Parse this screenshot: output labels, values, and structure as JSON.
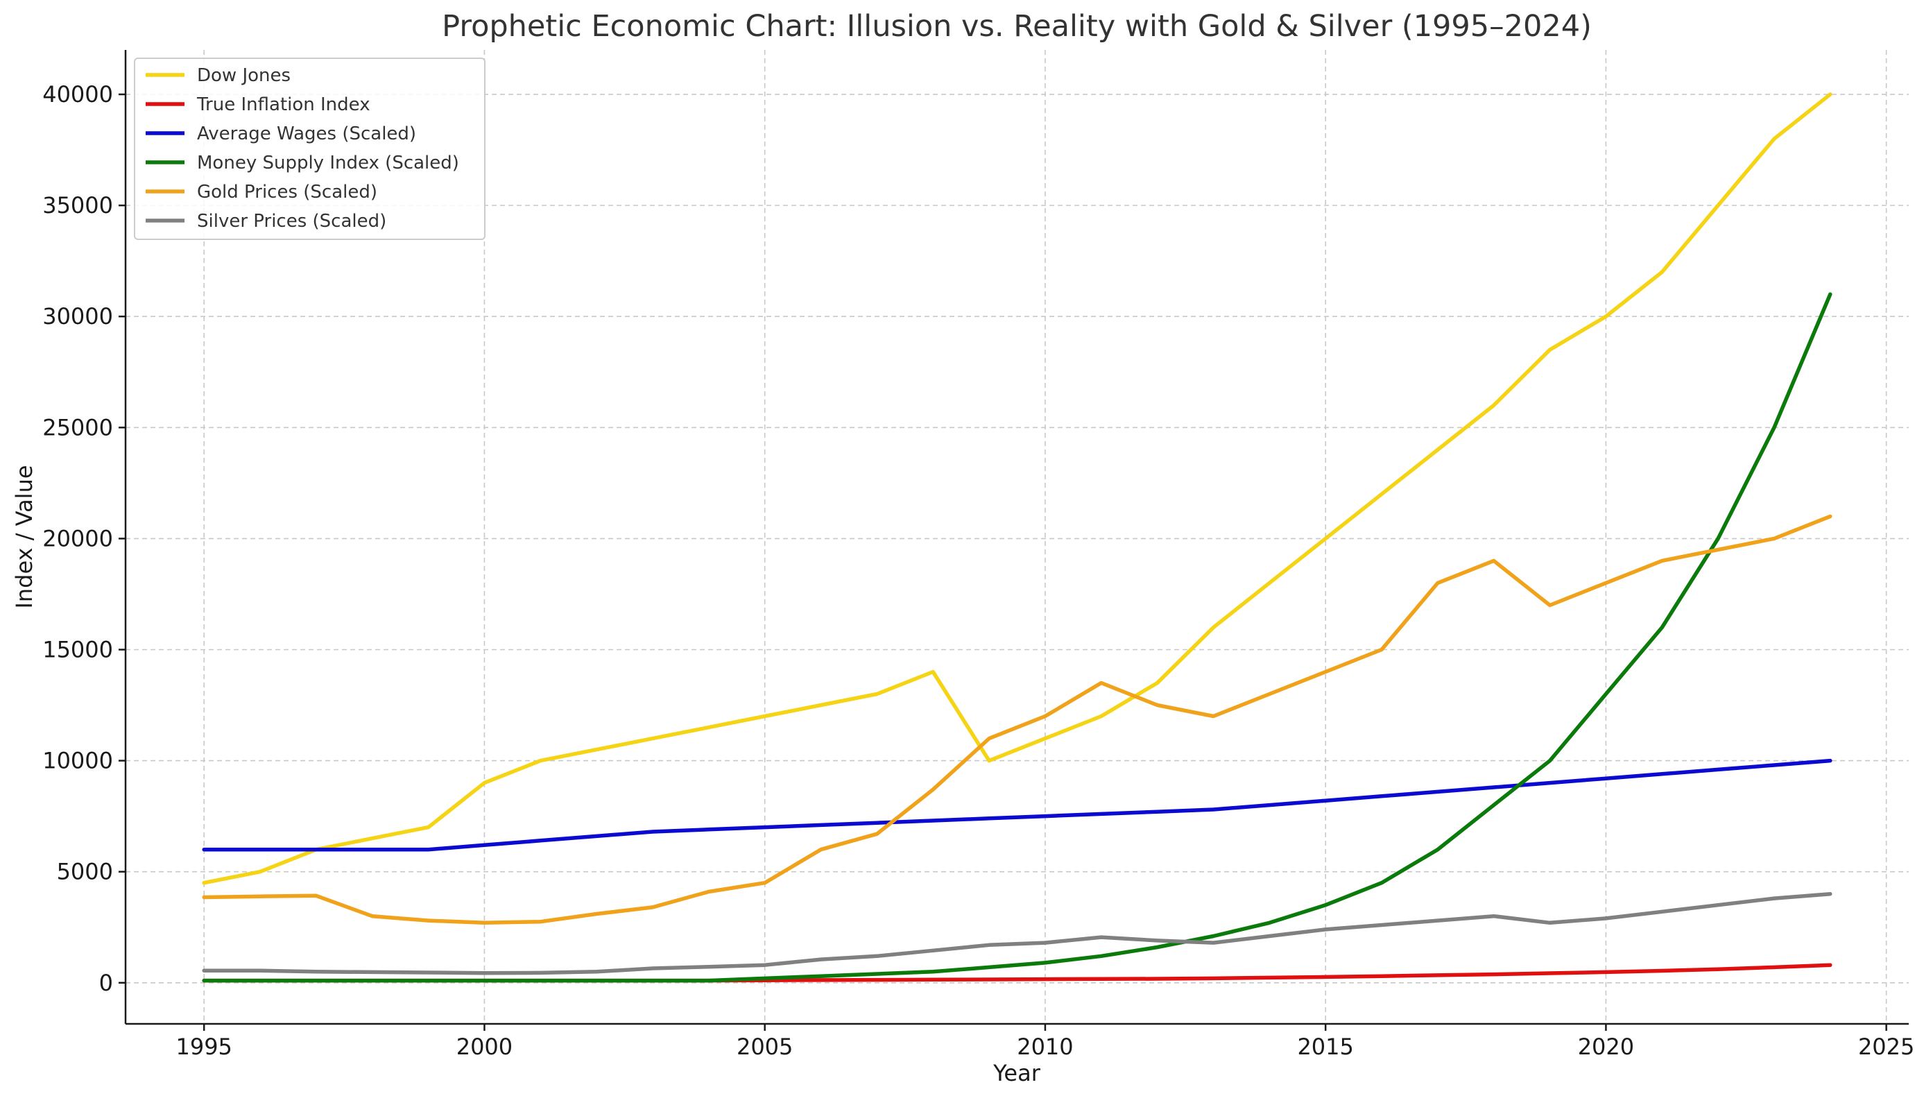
{
  "chart_data": {
    "type": "line",
    "title": "Prophetic Economic Chart: Illusion vs. Reality with Gold & Silver (1995–2024)",
    "xlabel": "Year",
    "ylabel": "Index / Value",
    "xlim": [
      1993.6,
      2025.4
    ],
    "ylim": [
      -1850,
      42000
    ],
    "x_ticks": [
      1995,
      2000,
      2005,
      2010,
      2015,
      2020,
      2025
    ],
    "y_ticks": [
      0,
      5000,
      10000,
      15000,
      20000,
      25000,
      30000,
      35000,
      40000
    ],
    "grid": true,
    "legend_position": "upper-left",
    "x": [
      1995,
      1996,
      1997,
      1998,
      1999,
      2000,
      2001,
      2002,
      2003,
      2004,
      2005,
      2006,
      2007,
      2008,
      2009,
      2010,
      2011,
      2012,
      2013,
      2014,
      2015,
      2016,
      2017,
      2018,
      2019,
      2020,
      2021,
      2022,
      2023,
      2024
    ],
    "series": [
      {
        "name": "Dow Jones",
        "color": "#f5d315",
        "values": [
          4500,
          5000,
          6000,
          6500,
          7000,
          9000,
          10000,
          10500,
          11000,
          11500,
          12000,
          12500,
          13000,
          14000,
          10000,
          11000,
          12000,
          13500,
          16000,
          18000,
          20000,
          22000,
          24000,
          26000,
          28500,
          30000,
          32000,
          35000,
          38000,
          40000
        ]
      },
      {
        "name": "True Inflation Index",
        "color": "#e01010",
        "values": [
          100,
          100,
          100,
          100,
          100,
          100,
          100,
          100,
          100,
          100,
          110,
          120,
          130,
          140,
          150,
          160,
          170,
          180,
          200,
          230,
          260,
          300,
          340,
          380,
          430,
          480,
          540,
          610,
          700,
          800
        ]
      },
      {
        "name": "Average Wages (Scaled)",
        "color": "#0a0ad0",
        "values": [
          6000,
          6000,
          6000,
          6000,
          6000,
          6200,
          6400,
          6600,
          6800,
          6900,
          7000,
          7100,
          7200,
          7300,
          7400,
          7500,
          7600,
          7700,
          7800,
          8000,
          8200,
          8400,
          8600,
          8800,
          9000,
          9200,
          9400,
          9600,
          9800,
          10000
        ]
      },
      {
        "name": "Money Supply Index (Scaled)",
        "color": "#0a7a0a",
        "values": [
          100,
          100,
          100,
          100,
          100,
          100,
          100,
          100,
          100,
          100,
          200,
          300,
          400,
          500,
          700,
          900,
          1200,
          1600,
          2100,
          2700,
          3500,
          4500,
          6000,
          8000,
          10000,
          13000,
          16000,
          20000,
          25000,
          31000
        ]
      },
      {
        "name": "Gold Prices (Scaled)",
        "color": "#f0a21b",
        "values": [
          3850,
          3890,
          3920,
          3000,
          2800,
          2700,
          2750,
          3100,
          3400,
          4100,
          4500,
          6000,
          6700,
          8700,
          11000,
          12000,
          13500,
          12500,
          12000,
          13000,
          14000,
          15000,
          18000,
          19000,
          17000,
          18000,
          19000,
          19500,
          20000,
          21000
        ]
      },
      {
        "name": "Silver Prices (Scaled)",
        "color": "#808080",
        "values": [
          550,
          550,
          500,
          480,
          460,
          440,
          450,
          500,
          650,
          720,
          800,
          1050,
          1200,
          1450,
          1700,
          1800,
          2050,
          1900,
          1800,
          2100,
          2400,
          2600,
          2800,
          3000,
          2700,
          2900,
          3200,
          3500,
          3800,
          4000
        ]
      }
    ]
  }
}
